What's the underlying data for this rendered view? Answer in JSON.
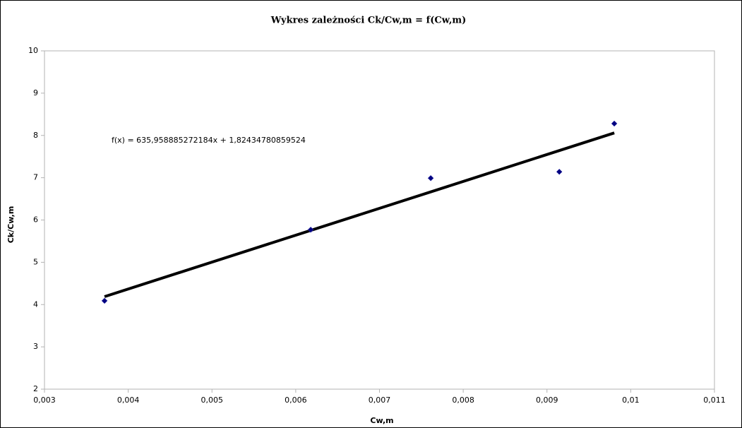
{
  "chart_data": {
    "type": "scatter",
    "title": "Wykres zależności  Ck/Cw,m  =  f(Cw,m)",
    "x_label": "Cw,m",
    "y_label": "Ck/Cw,m",
    "series": [
      {
        "name": "Ck/Cw,m",
        "color": "#000080",
        "x": [
          0.003717,
          0.006179,
          0.007612,
          0.009147,
          0.009804
        ],
        "values": [
          4.09,
          5.77,
          6.99,
          7.14,
          8.28
        ]
      }
    ],
    "trendline": {
      "slope": 635.958885272184,
      "intercept": 1.82434780859524,
      "color": "#000000",
      "label": "f(x) = 635,958885272184x + 1,82434780859524"
    },
    "xlim": [
      0.003,
      0.011
    ],
    "xticks": [
      {
        "value": 0.003,
        "label": "0,003"
      },
      {
        "value": 0.004,
        "label": "0,004"
      },
      {
        "value": 0.005,
        "label": "0,005"
      },
      {
        "value": 0.006,
        "label": "0,006"
      },
      {
        "value": 0.007,
        "label": "0,007"
      },
      {
        "value": 0.008,
        "label": "0,008"
      },
      {
        "value": 0.009,
        "label": "0,009"
      },
      {
        "value": 0.01,
        "label": "0,01"
      },
      {
        "value": 0.011,
        "label": "0,011"
      }
    ],
    "ylim": [
      2,
      10
    ],
    "yticks": [
      2,
      3,
      4,
      5,
      6,
      7,
      8,
      9,
      10
    ],
    "grid": false
  }
}
